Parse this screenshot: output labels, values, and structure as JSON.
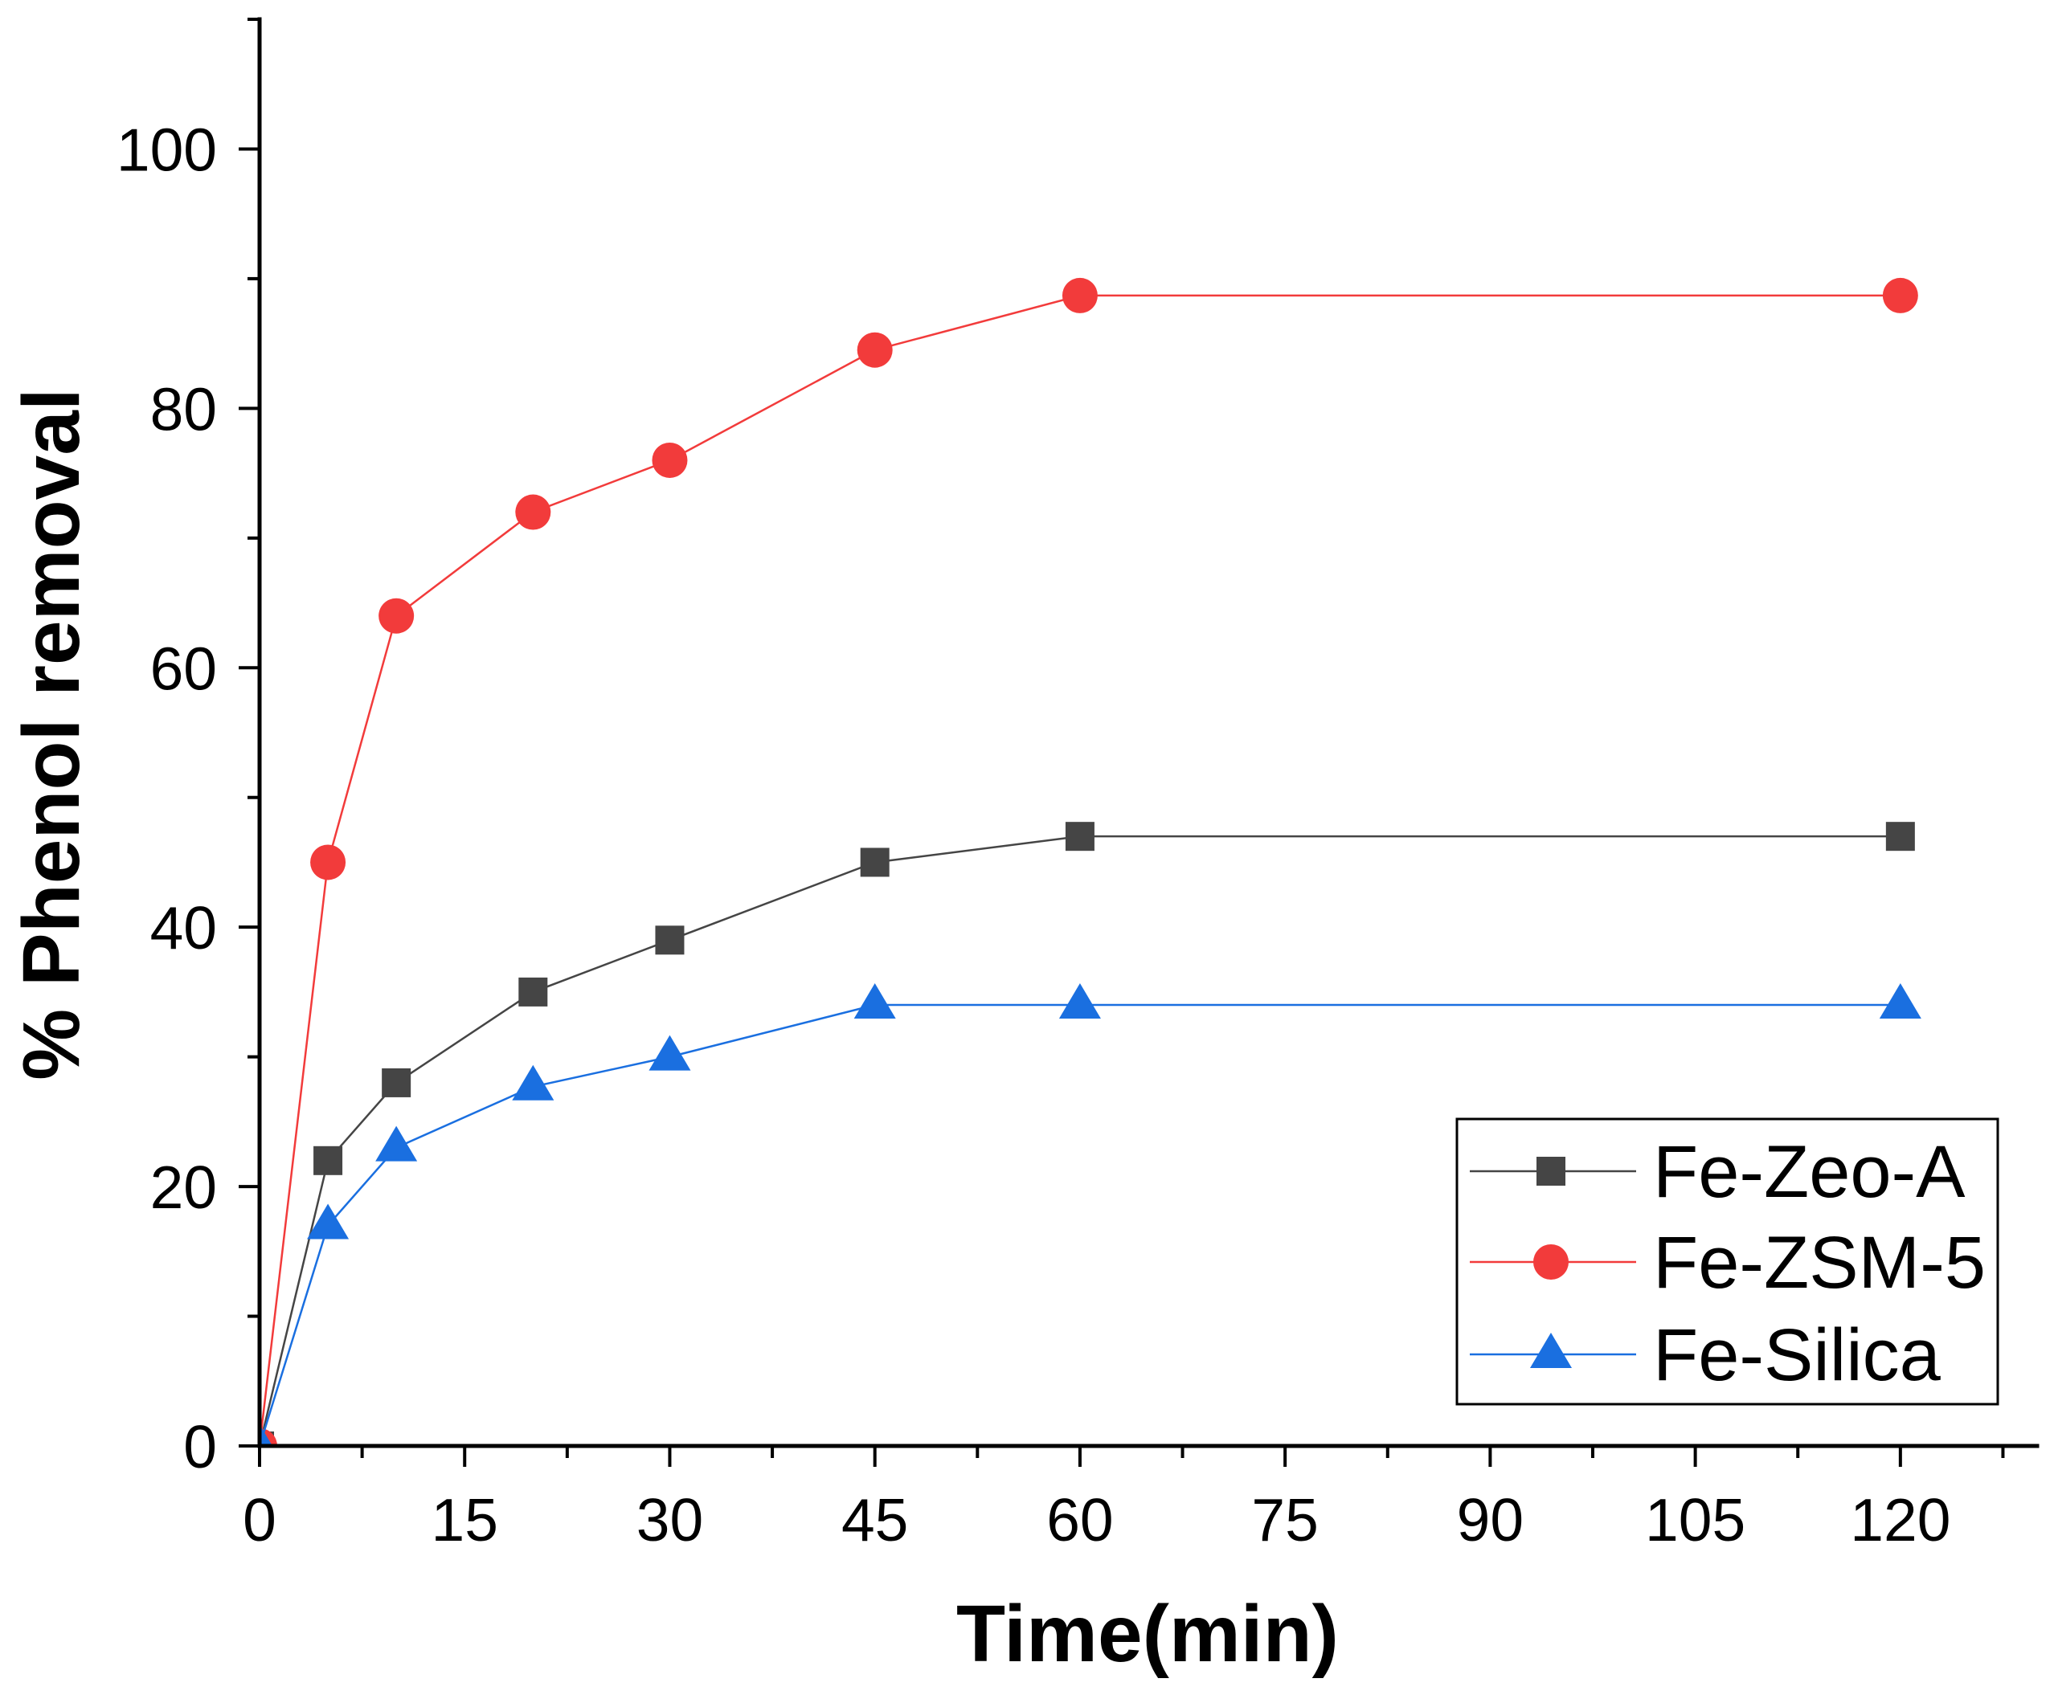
{
  "chart_data": {
    "type": "line",
    "title": "",
    "xlabel": "Time(min)",
    "ylabel": "% Phenol removal",
    "xlim": [
      0,
      130
    ],
    "ylim": [
      0,
      110
    ],
    "x_ticks": [
      0,
      15,
      30,
      45,
      60,
      75,
      90,
      105,
      120
    ],
    "y_ticks": [
      0,
      20,
      40,
      60,
      80,
      100
    ],
    "grid": false,
    "legend_position": "bottom-right",
    "series": [
      {
        "name": "Fe-Zeo-A",
        "color": "#454545",
        "marker": "square",
        "x": [
          0,
          5,
          10,
          20,
          30,
          45,
          60,
          120
        ],
        "y": [
          0,
          22,
          28,
          35,
          39,
          45,
          47,
          47
        ]
      },
      {
        "name": "Fe-ZSM-5",
        "color": "#f23b3b",
        "marker": "circle",
        "x": [
          0,
          5,
          10,
          20,
          30,
          45,
          60,
          120
        ],
        "y": [
          0,
          45,
          64,
          72,
          76,
          84.5,
          88.7,
          88.7
        ]
      },
      {
        "name": "Fe-Silica",
        "color": "#1a6fe0",
        "marker": "triangle",
        "x": [
          0,
          5,
          10,
          20,
          30,
          45,
          60,
          120
        ],
        "y": [
          0,
          17,
          23,
          27.7,
          30,
          34,
          34,
          34
        ]
      }
    ]
  }
}
